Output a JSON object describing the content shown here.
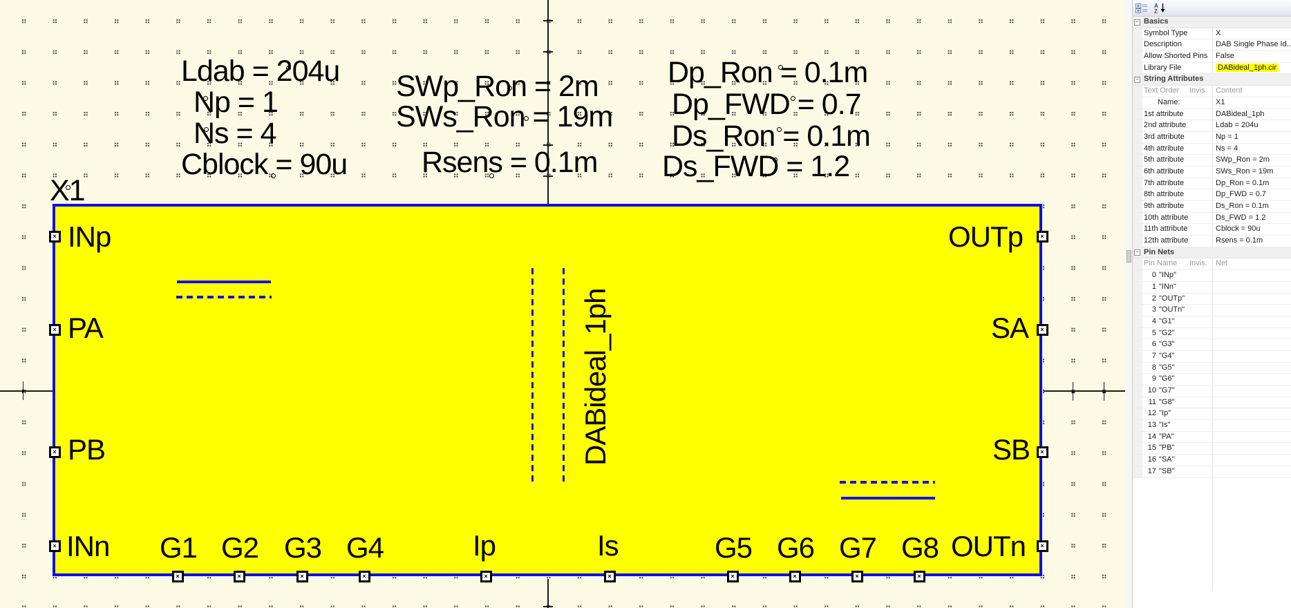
{
  "schematic": {
    "reference": "X1",
    "symbol_label": "DABideal_1ph",
    "colors": {
      "symbol_fill": "#FFFF00",
      "symbol_border": "#0F0FEF",
      "canvas": "#FCFAE4",
      "highlight": "#FFFF00"
    },
    "parameters": {
      "col1": [
        "Ldab = 204u",
        "Np = 1",
        "Ns = 4",
        "Cblock = 90u"
      ],
      "col2": [
        "SWp_Ron = 2m",
        "SWs_Ron = 19m",
        "Rsens = 0.1m"
      ],
      "col3": [
        "Dp_Ron = 0.1m",
        "Dp_FWD = 0.7",
        "Ds_Ron = 0.1m",
        "Ds_FWD = 1.2"
      ]
    },
    "pins": {
      "left": [
        "INp",
        "PA",
        "PB",
        "INn"
      ],
      "right": [
        "OUTp",
        "SA",
        "SB",
        "OUTn"
      ],
      "bottom": [
        "G1",
        "G2",
        "G3",
        "G4",
        "Ip",
        "Is",
        "G5",
        "G6",
        "G7",
        "G8"
      ]
    }
  },
  "panel": {
    "toolbar": {
      "categorized_icon": "categorized-view",
      "sort_icon": "alphabetical-sort"
    },
    "basics": {
      "title": "Basics",
      "rows": [
        {
          "name": "Symbol Type",
          "value": "X"
        },
        {
          "name": "Description",
          "value": "DAB Single Phase Id..."
        },
        {
          "name": "Allow Shorted Pins",
          "value": "False"
        },
        {
          "name": "Library File",
          "value": "DABideal_1ph.cir",
          "highlight": true
        }
      ]
    },
    "string_attributes": {
      "title": "String Attributes",
      "header": {
        "col1": "Text Order",
        "col2": "Invis.",
        "col3": "Content"
      },
      "rows": [
        {
          "name": "Name:",
          "value": "X1",
          "indent": true
        },
        {
          "name": "1st attribute",
          "value": "DABideal_1ph"
        },
        {
          "name": "2nd attribute",
          "value": "Ldab = 204u"
        },
        {
          "name": "3rd attribute",
          "value": "Np = 1"
        },
        {
          "name": "4th attribute",
          "value": "Ns = 4"
        },
        {
          "name": "5th attribute",
          "value": "SWp_Ron = 2m"
        },
        {
          "name": "6th attribute",
          "value": "SWs_Ron = 19m"
        },
        {
          "name": "7th attribute",
          "value": "Dp_Ron = 0.1m"
        },
        {
          "name": "8th attribute",
          "value": "Dp_FWD = 0.7"
        },
        {
          "name": "9th attribute",
          "value": "Ds_Ron = 0.1m"
        },
        {
          "name": "10th attribute",
          "value": "Ds_FWD = 1.2"
        },
        {
          "name": "11th attribute",
          "value": "Cblock = 90u"
        },
        {
          "name": "12th attribute",
          "value": "Rsens = 0.1m"
        }
      ]
    },
    "pin_nets": {
      "title": "Pin Nets",
      "header": {
        "col1": "Pin Name",
        "col2": "Invis.",
        "col3": "Net"
      },
      "rows": [
        {
          "index": "0",
          "pin": "\"INp\"",
          "net": ""
        },
        {
          "index": "1",
          "pin": "\"INn\"",
          "net": ""
        },
        {
          "index": "2",
          "pin": "\"OUTp\"",
          "net": ""
        },
        {
          "index": "3",
          "pin": "\"OUTn\"",
          "net": ""
        },
        {
          "index": "4",
          "pin": "\"G1\"",
          "net": ""
        },
        {
          "index": "5",
          "pin": "\"G2\"",
          "net": ""
        },
        {
          "index": "6",
          "pin": "\"G3\"",
          "net": ""
        },
        {
          "index": "7",
          "pin": "\"G4\"",
          "net": ""
        },
        {
          "index": "8",
          "pin": "\"G5\"",
          "net": ""
        },
        {
          "index": "9",
          "pin": "\"G6\"",
          "net": ""
        },
        {
          "index": "10",
          "pin": "\"G7\"",
          "net": ""
        },
        {
          "index": "11",
          "pin": "\"G8\"",
          "net": ""
        },
        {
          "index": "12",
          "pin": "\"Ip\"",
          "net": ""
        },
        {
          "index": "13",
          "pin": "\"Is\"",
          "net": ""
        },
        {
          "index": "14",
          "pin": "\"PA\"",
          "net": ""
        },
        {
          "index": "15",
          "pin": "\"PB\"",
          "net": ""
        },
        {
          "index": "16",
          "pin": "\"SA\"",
          "net": ""
        },
        {
          "index": "17",
          "pin": "\"SB\"",
          "net": ""
        }
      ]
    }
  }
}
